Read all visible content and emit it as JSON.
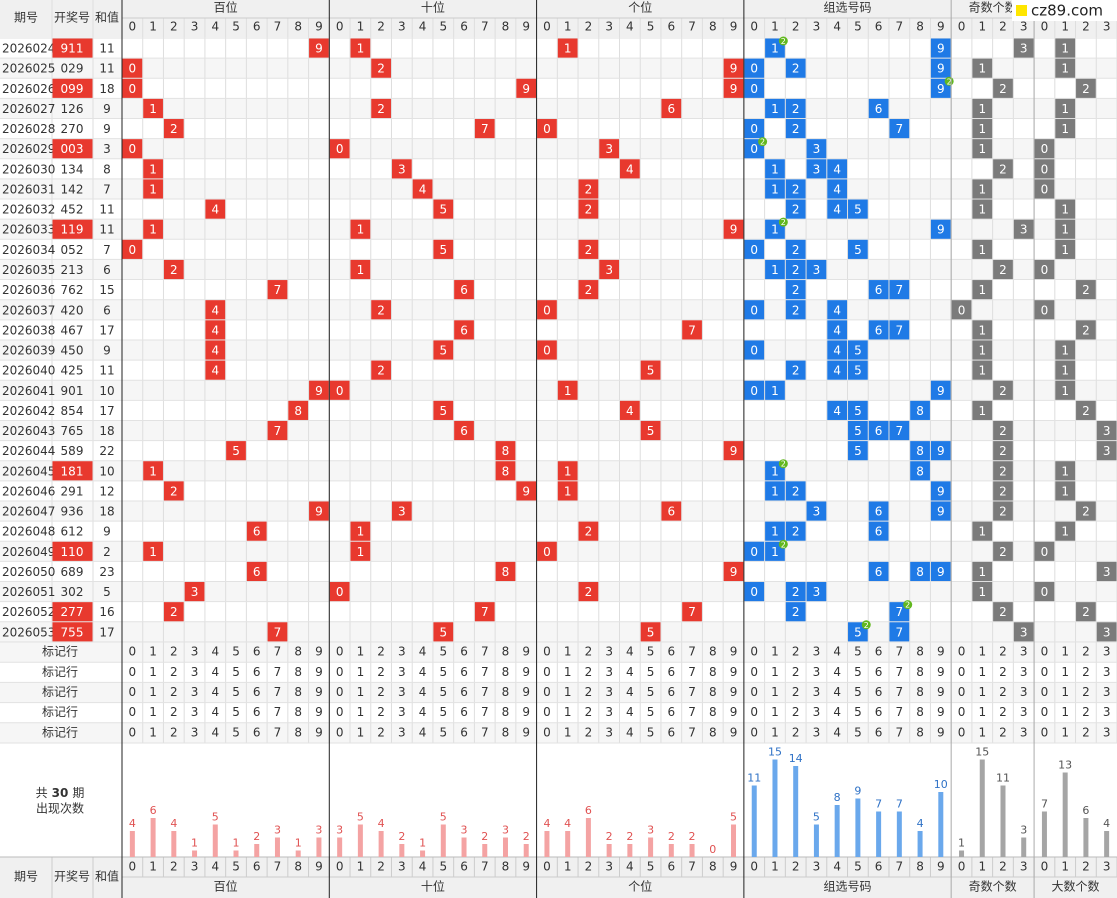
{
  "header": {
    "period": "期号",
    "number": "开奖号",
    "sum": "和值"
  },
  "watermark": "cz89.com",
  "groups": [
    {
      "name": "百位",
      "digits": [
        0,
        1,
        2,
        3,
        4,
        5,
        6,
        7,
        8,
        9
      ]
    },
    {
      "name": "十位",
      "digits": [
        0,
        1,
        2,
        3,
        4,
        5,
        6,
        7,
        8,
        9
      ]
    },
    {
      "name": "个位",
      "digits": [
        0,
        1,
        2,
        3,
        4,
        5,
        6,
        7,
        8,
        9
      ]
    },
    {
      "name": "组选号码",
      "digits": [
        0,
        1,
        2,
        3,
        4,
        5,
        6,
        7,
        8,
        9
      ]
    },
    {
      "name": "奇数个数",
      "digits": [
        0,
        1,
        2,
        3
      ]
    },
    {
      "name": "大数个数",
      "digits": [
        0,
        1,
        2,
        3
      ]
    }
  ],
  "rows": [
    {
      "period": "2026024",
      "number": "911",
      "sum": 11,
      "digits": [
        9,
        1,
        1
      ],
      "group": [
        1,
        9
      ],
      "repeat": {
        "digit": 1,
        "count": 2
      },
      "odd": 3,
      "big": 1
    },
    {
      "period": "2026025",
      "number": "029",
      "sum": 11,
      "digits": [
        0,
        2,
        9
      ],
      "group": [
        0,
        2,
        9
      ],
      "odd": 1,
      "big": 1
    },
    {
      "period": "2026026",
      "number": "099",
      "sum": 18,
      "digits": [
        0,
        9,
        9
      ],
      "group": [
        0,
        9
      ],
      "repeat": {
        "digit": 9,
        "count": 2
      },
      "odd": 2,
      "big": 2
    },
    {
      "period": "2026027",
      "number": "126",
      "sum": 9,
      "digits": [
        1,
        2,
        6
      ],
      "group": [
        1,
        2,
        6
      ],
      "odd": 1,
      "big": 1
    },
    {
      "period": "2026028",
      "number": "270",
      "sum": 9,
      "digits": [
        2,
        7,
        0
      ],
      "group": [
        0,
        2,
        7
      ],
      "odd": 1,
      "big": 1
    },
    {
      "period": "2026029",
      "number": "003",
      "sum": 3,
      "digits": [
        0,
        0,
        3
      ],
      "group": [
        0,
        3
      ],
      "repeat": {
        "digit": 0,
        "count": 2
      },
      "odd": 1,
      "big": 0
    },
    {
      "period": "2026030",
      "number": "134",
      "sum": 8,
      "digits": [
        1,
        3,
        4
      ],
      "group": [
        1,
        3,
        4
      ],
      "odd": 2,
      "big": 0
    },
    {
      "period": "2026031",
      "number": "142",
      "sum": 7,
      "digits": [
        1,
        4,
        2
      ],
      "group": [
        1,
        2,
        4
      ],
      "odd": 1,
      "big": 0
    },
    {
      "period": "2026032",
      "number": "452",
      "sum": 11,
      "digits": [
        4,
        5,
        2
      ],
      "group": [
        2,
        4,
        5
      ],
      "odd": 1,
      "big": 1
    },
    {
      "period": "2026033",
      "number": "119",
      "sum": 11,
      "digits": [
        1,
        1,
        9
      ],
      "group": [
        1,
        9
      ],
      "repeat": {
        "digit": 1,
        "count": 2
      },
      "odd": 3,
      "big": 1
    },
    {
      "period": "2026034",
      "number": "052",
      "sum": 7,
      "digits": [
        0,
        5,
        2
      ],
      "group": [
        0,
        2,
        5
      ],
      "odd": 1,
      "big": 1
    },
    {
      "period": "2026035",
      "number": "213",
      "sum": 6,
      "digits": [
        2,
        1,
        3
      ],
      "group": [
        1,
        2,
        3
      ],
      "odd": 2,
      "big": 0
    },
    {
      "period": "2026036",
      "number": "762",
      "sum": 15,
      "digits": [
        7,
        6,
        2
      ],
      "group": [
        2,
        6,
        7
      ],
      "odd": 1,
      "big": 2
    },
    {
      "period": "2026037",
      "number": "420",
      "sum": 6,
      "digits": [
        4,
        2,
        0
      ],
      "group": [
        0,
        2,
        4
      ],
      "odd": 0,
      "big": 0
    },
    {
      "period": "2026038",
      "number": "467",
      "sum": 17,
      "digits": [
        4,
        6,
        7
      ],
      "group": [
        4,
        6,
        7
      ],
      "odd": 1,
      "big": 2
    },
    {
      "period": "2026039",
      "number": "450",
      "sum": 9,
      "digits": [
        4,
        5,
        0
      ],
      "group": [
        0,
        4,
        5
      ],
      "odd": 1,
      "big": 1
    },
    {
      "period": "2026040",
      "number": "425",
      "sum": 11,
      "digits": [
        4,
        2,
        5
      ],
      "group": [
        2,
        4,
        5
      ],
      "odd": 1,
      "big": 1
    },
    {
      "period": "2026041",
      "number": "901",
      "sum": 10,
      "digits": [
        9,
        0,
        1
      ],
      "group": [
        0,
        1,
        9
      ],
      "odd": 2,
      "big": 1
    },
    {
      "period": "2026042",
      "number": "854",
      "sum": 17,
      "digits": [
        8,
        5,
        4
      ],
      "group": [
        4,
        5,
        8
      ],
      "odd": 1,
      "big": 2
    },
    {
      "period": "2026043",
      "number": "765",
      "sum": 18,
      "digits": [
        7,
        6,
        5
      ],
      "group": [
        5,
        6,
        7
      ],
      "odd": 2,
      "big": 3
    },
    {
      "period": "2026044",
      "number": "589",
      "sum": 22,
      "digits": [
        5,
        8,
        9
      ],
      "group": [
        5,
        8,
        9
      ],
      "odd": 2,
      "big": 3
    },
    {
      "period": "2026045",
      "number": "181",
      "sum": 10,
      "digits": [
        1,
        8,
        1
      ],
      "group": [
        1,
        8
      ],
      "repeat": {
        "digit": 1,
        "count": 2
      },
      "odd": 2,
      "big": 1
    },
    {
      "period": "2026046",
      "number": "291",
      "sum": 12,
      "digits": [
        2,
        9,
        1
      ],
      "group": [
        1,
        2,
        9
      ],
      "odd": 2,
      "big": 1
    },
    {
      "period": "2026047",
      "number": "936",
      "sum": 18,
      "digits": [
        9,
        3,
        6
      ],
      "group": [
        3,
        6,
        9
      ],
      "odd": 2,
      "big": 2
    },
    {
      "period": "2026048",
      "number": "612",
      "sum": 9,
      "digits": [
        6,
        1,
        2
      ],
      "group": [
        1,
        2,
        6
      ],
      "odd": 1,
      "big": 1
    },
    {
      "period": "2026049",
      "number": "110",
      "sum": 2,
      "digits": [
        1,
        1,
        0
      ],
      "group": [
        0,
        1
      ],
      "repeat": {
        "digit": 1,
        "count": 2
      },
      "odd": 2,
      "big": 0
    },
    {
      "period": "2026050",
      "number": "689",
      "sum": 23,
      "digits": [
        6,
        8,
        9
      ],
      "group": [
        6,
        8,
        9
      ],
      "odd": 1,
      "big": 3
    },
    {
      "period": "2026051",
      "number": "302",
      "sum": 5,
      "digits": [
        3,
        0,
        2
      ],
      "group": [
        0,
        2,
        3
      ],
      "odd": 1,
      "big": 0
    },
    {
      "period": "2026052",
      "number": "277",
      "sum": 16,
      "digits": [
        2,
        7,
        7
      ],
      "group": [
        2,
        7
      ],
      "repeat": {
        "digit": 7,
        "count": 2
      },
      "odd": 2,
      "big": 2
    },
    {
      "period": "2026053",
      "number": "755",
      "sum": 17,
      "digits": [
        7,
        5,
        5
      ],
      "group": [
        5,
        7
      ],
      "repeat": {
        "digit": 5,
        "count": 2
      },
      "odd": 3,
      "big": 3
    }
  ],
  "marker_rows": [
    "标记行",
    "标记行",
    "标记行",
    "标记行",
    "标记行"
  ],
  "stats": {
    "prefix": "共",
    "periods": 30,
    "suffix": "期",
    "label": "出现次数",
    "counts": [
      [
        4,
        6,
        4,
        1,
        5,
        1,
        2,
        3,
        1,
        3
      ],
      [
        3,
        5,
        4,
        2,
        1,
        5,
        3,
        2,
        3,
        2
      ],
      [
        4,
        4,
        6,
        2,
        2,
        3,
        2,
        2,
        0,
        5
      ],
      [
        11,
        15,
        14,
        5,
        8,
        9,
        7,
        7,
        4,
        10
      ],
      [
        1,
        15,
        11,
        3
      ],
      [
        7,
        13,
        6,
        4
      ]
    ]
  }
}
